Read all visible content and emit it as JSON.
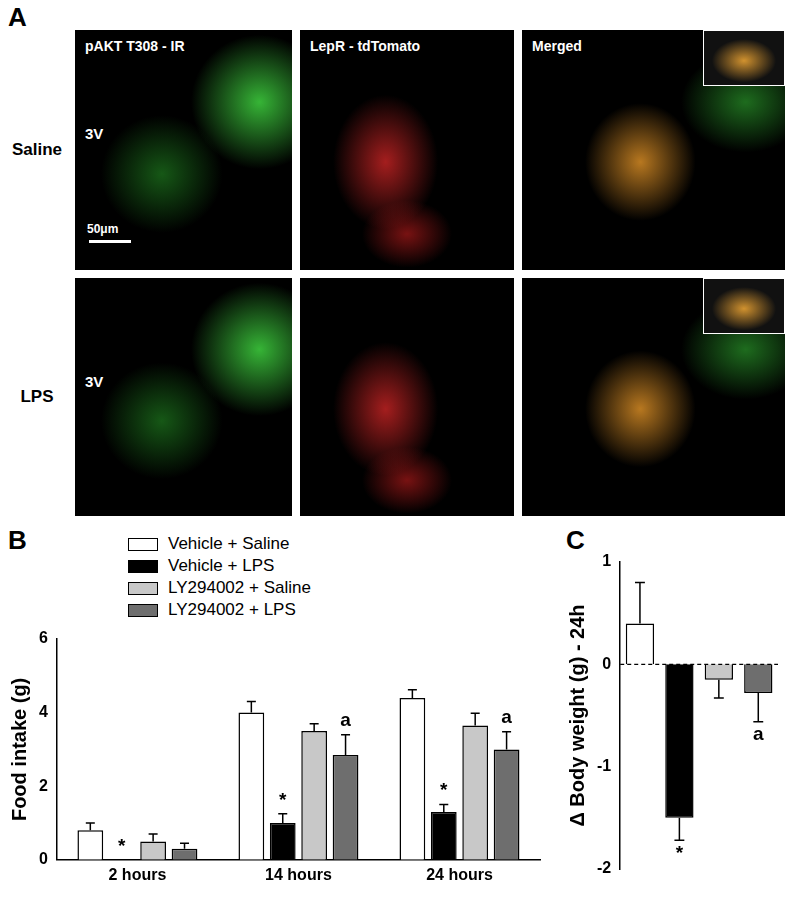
{
  "image_panel": {
    "label": "A",
    "columns": [
      "pAKT T308 - IR",
      "LepR - tdTomato",
      "Merged"
    ],
    "rows": [
      {
        "label": "Saline",
        "marker": "3V"
      },
      {
        "label": "LPS",
        "marker": "3V"
      }
    ],
    "scale_bar": "50μm"
  },
  "chart_data": [
    {
      "type": "bar",
      "panel_label": "B",
      "y_label": "Food intake (g)",
      "categories": [
        "2 hours",
        "14 hours",
        "24 hours"
      ],
      "series": [
        {
          "name": "Vehicle + Saline",
          "color": "#ffffff",
          "values": [
            0.8,
            4.0,
            4.4
          ],
          "errors": [
            0.2,
            0.3,
            0.22
          ],
          "annotations": [
            null,
            null,
            null
          ]
        },
        {
          "name": "Vehicle + LPS",
          "color": "#000000",
          "values": [
            0,
            1.0,
            1.3
          ],
          "errors": [
            0,
            0.25,
            0.2
          ],
          "annotations": [
            "*",
            "*",
            "*"
          ]
        },
        {
          "name": "LY294002 + Saline",
          "color": "#c8c8c8",
          "values": [
            0.5,
            3.5,
            3.65
          ],
          "errors": [
            0.2,
            0.2,
            0.33
          ],
          "annotations": [
            null,
            null,
            null
          ]
        },
        {
          "name": "LY294002 + LPS",
          "color": "#6e6e6e",
          "values": [
            0.3,
            2.85,
            3.0
          ],
          "errors": [
            0.15,
            0.55,
            0.48
          ],
          "annotations": [
            null,
            "a",
            "a"
          ]
        }
      ],
      "ylim": [
        0,
        6
      ],
      "yticks": [
        0,
        2,
        4,
        6
      ],
      "grid": false,
      "legend": "top-left"
    },
    {
      "type": "bar",
      "panel_label": "C",
      "y_label": "Δ Body weight (g) - 24h",
      "categories": [
        null,
        null,
        null,
        null
      ],
      "values": [
        0.4,
        -1.5,
        -0.15,
        -0.28
      ],
      "errors": [
        0.4,
        0.22,
        0.18,
        0.28
      ],
      "annotations": [
        null,
        "*",
        null,
        "a"
      ],
      "colors": [
        "#ffffff",
        "#000000",
        "#c8c8c8",
        "#6e6e6e"
      ],
      "ylim": [
        -2,
        1
      ],
      "yticks": [
        -2,
        -1,
        0,
        1
      ],
      "grid": false,
      "tick_labels": "y"
    }
  ]
}
